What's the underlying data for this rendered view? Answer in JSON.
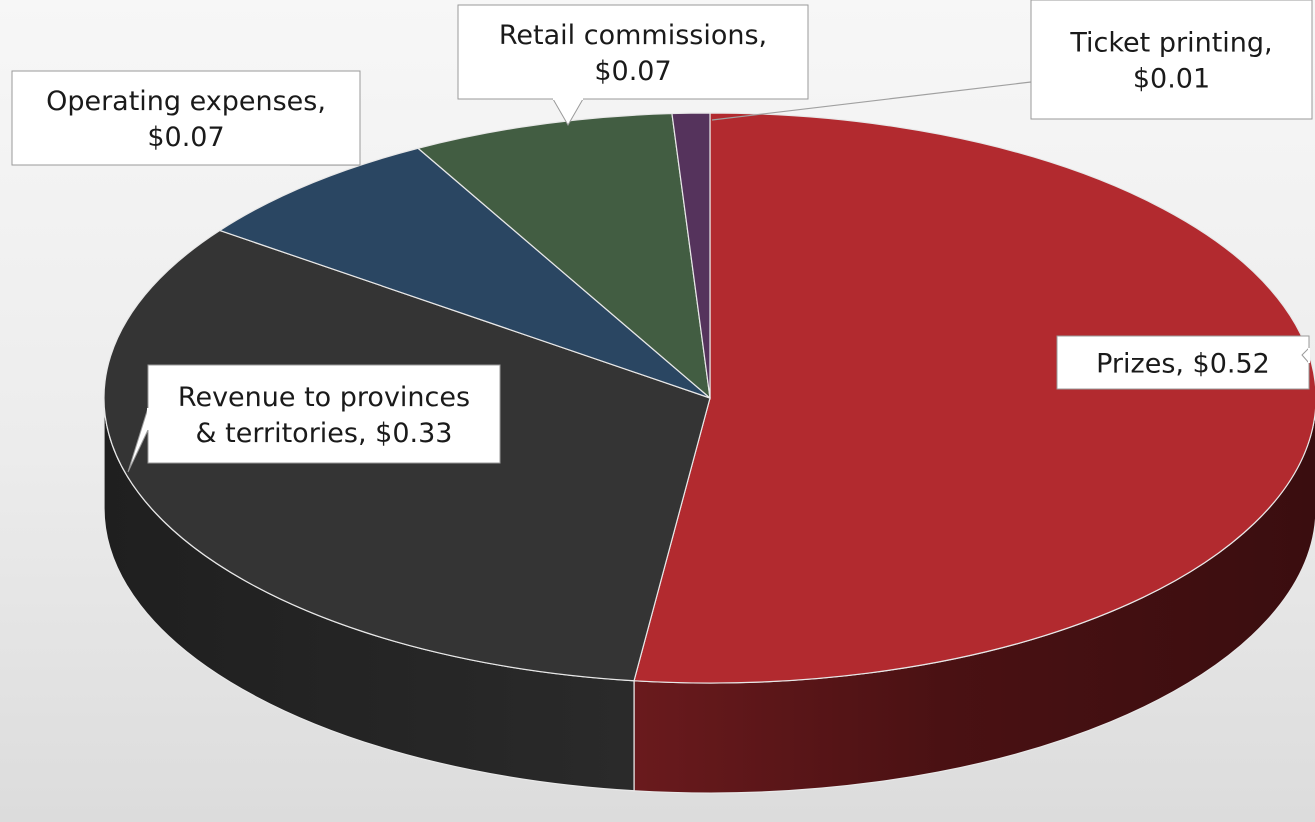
{
  "chart_data": {
    "type": "pie",
    "title": "",
    "unit_prefix": "$",
    "slices": [
      {
        "label": "Prizes",
        "value": 0.52,
        "label_text": "Prizes, $0.52",
        "color": "#b22a2f"
      },
      {
        "label": "Revenue to provinces & territories",
        "value": 0.33,
        "label_text": "Revenue to provinces & territories, $0.33",
        "color": "#343434"
      },
      {
        "label": "Operating expenses",
        "value": 0.07,
        "label_text": "Operating expenses, $0.07",
        "color": "#2a4662"
      },
      {
        "label": "Retail commissions",
        "value": 0.07,
        "label_text": "Retail commissions, $0.07",
        "color": "#425d42"
      },
      {
        "label": "Ticket printing",
        "value": 0.01,
        "label_text": "Ticket printing, $0.01",
        "color": "#55335c"
      }
    ],
    "style": "3d-pie",
    "legend": "none",
    "data_labels": "callouts"
  }
}
